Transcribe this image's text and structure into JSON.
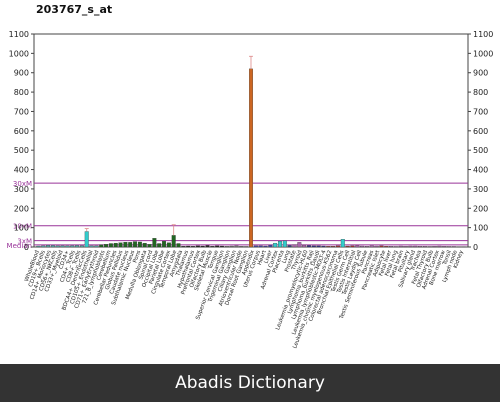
{
  "chart_data": {
    "type": "bar",
    "title": "203767_s_at",
    "ylim": [
      0,
      1100
    ],
    "yticks": [
      0,
      100,
      200,
      300,
      400,
      500,
      600,
      700,
      800,
      900,
      1000,
      1100
    ],
    "reference_lines": [
      {
        "label": "30xM",
        "value": 330,
        "color": "#993399"
      },
      {
        "label": "10xM",
        "value": 110,
        "color": "#993399"
      },
      {
        "label": "3xM",
        "value": 33,
        "color": "#993399"
      },
      {
        "label": "Median",
        "value": 11,
        "color": "#993399"
      }
    ],
    "grid": false,
    "legend": "none",
    "tick_labels_visible": [
      "WholeBlood",
      "CD19+_Bcells",
      "CD14+_Monocytes",
      "CD56+_NKCells",
      "CD33+_Myeloid",
      "CD34+",
      "CD4+_Tcells",
      "CD8+_Tcells",
      "BDCA4+_DentriticCells",
      "CD105+_Endothelial",
      "CD71+_EarlyErythroid",
      "721_B_lymphoblasts",
      "Cerebellum",
      "Cerebellar Peduncles",
      "Globus Pallidus",
      "Caudate nucleus",
      "Subthalamic Nucleus",
      "Pons",
      "Medulla Oblongata",
      "Spinal cord",
      "Occipital Lobe",
      "Parietal Lobe",
      "Cingulate Cortex",
      "Temporal Lobe",
      "Amygdala",
      "Thalamus",
      "Hypothalamus",
      "Prefrontal Cortex",
      "Olfactory Bulb",
      "Skeletal Muscle",
      "Tongue",
      "Superior Cervical Ganglion",
      "Trigeminal Ganglion",
      "Ciliary Ganglion",
      "Atrioventricular Node",
      "Dorsal Root Ganglion",
      "Appendix",
      "Uterus Corpus",
      "Heart",
      "Liver",
      "Adrenal Cortex",
      "Placenta",
      "Lung",
      "Prostate",
      "Thyroid",
      "Leukemia_promyelocytic-HL60",
      "Lymphoma_burkitts_Raji",
      "Lymphoma_burkitts_Daudi",
      "Leukemia_lymphoblastic-MOLT-4",
      "Leukemia_chronic myelogenous-K562",
      "Colorectal adenocarcinoma",
      "Bronchial Epithelial Cells",
      "Testis Germ Cell",
      "Testis Interstitial",
      "Testis Leydig Cell",
      "Testis Seminiferous Tubule",
      "Pancreas",
      "Pancreatic Islet",
      "Adipocyte",
      "Fetal liver",
      "Fetal lung",
      "Fetal brain",
      "Pituitary",
      "Salivary gland",
      "Trachea",
      "Fetal Thyroid",
      "Olfactory Bulb",
      "Adrenal Cortex",
      "Bone marrow",
      "Tonsil",
      "Lymph node",
      "Kidney"
    ],
    "values": [
      5,
      6,
      9,
      8,
      6,
      7,
      6,
      7,
      8,
      7,
      80,
      6,
      6,
      12,
      14,
      18,
      20,
      22,
      25,
      24,
      28,
      26,
      20,
      14,
      45,
      18,
      30,
      22,
      60,
      18,
      4,
      5,
      4,
      6,
      5,
      8,
      4,
      6,
      5,
      4,
      5,
      6,
      4,
      3,
      920,
      6,
      6,
      5,
      10,
      20,
      30,
      32,
      8,
      12,
      24,
      10,
      8,
      6,
      6,
      5,
      4,
      4,
      6,
      40,
      5,
      6,
      8,
      5,
      4,
      6,
      5,
      6,
      4,
      4,
      3,
      5,
      4,
      5,
      5,
      4,
      4,
      3,
      4,
      5,
      4,
      3,
      3,
      2,
      2
    ],
    "colors": [
      "#55aaaa",
      "#55aaaa",
      "#55aaaa",
      "#55aaaa",
      "#55aaaa",
      "#55aaaa",
      "#55aaaa",
      "#55aaaa",
      "#55aaaa",
      "#55aaaa",
      "#33cccc",
      "#55aaaa",
      "#55aaaa",
      "#226622",
      "#226622",
      "#226622",
      "#226622",
      "#226622",
      "#226622",
      "#226622",
      "#226622",
      "#226622",
      "#226622",
      "#226622",
      "#226622",
      "#226622",
      "#226622",
      "#226622",
      "#226622",
      "#226622",
      "#222222",
      "#222222",
      "#222222",
      "#222222",
      "#222222",
      "#222222",
      "#222222",
      "#222222",
      "#222222",
      "#777777",
      "#777777",
      "#777777",
      "#777777",
      "#777777",
      "#cc6622",
      "#4444aa",
      "#4444aa",
      "#4444aa",
      "#4444aa",
      "#33cccc",
      "#33cccc",
      "#33cccc",
      "#334488",
      "#aa66aa",
      "#aa66aa",
      "#aa66aa",
      "#333388",
      "#333388",
      "#333388",
      "#333388",
      "#aa3333",
      "#aa3333",
      "#aa3333",
      "#33cccc",
      "#aa3333",
      "#aa3333",
      "#aa66aa",
      "#aa66aa",
      "#aa66aa",
      "#aa66aa",
      "#aa66aa",
      "#aa3333",
      "#aa3333",
      "#aa66aa",
      "#aa66aa",
      "#aa66aa",
      "#aa66aa",
      "#aa66aa",
      "#aa66aa",
      "#aa66aa",
      "#aa66aa",
      "#aa66aa",
      "#aa66aa",
      "#aa66aa",
      "#aa66aa",
      "#aa66aa",
      "#aa66aa",
      "#aa66aa",
      "#aa66aa"
    ],
    "error_bars": [
      {
        "index": 10,
        "upper": 95
      },
      {
        "index": 28,
        "upper": 115
      },
      {
        "index": 44,
        "upper": 985
      }
    ]
  },
  "footer": {
    "text": "Abadis Dictionary"
  }
}
